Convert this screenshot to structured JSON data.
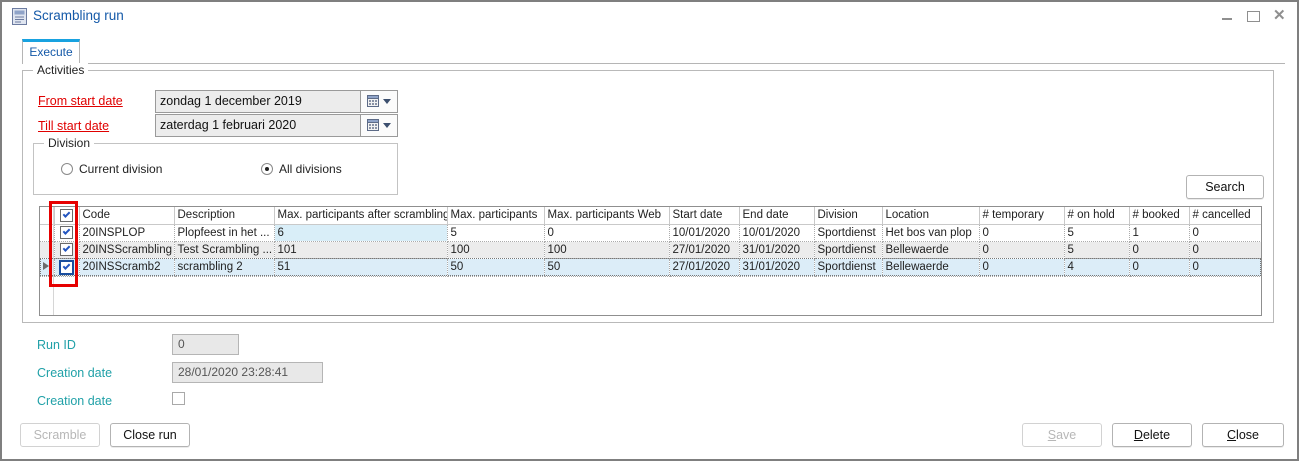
{
  "window": {
    "title": "Scrambling run",
    "icons": {
      "window_icon": "form-document",
      "minimize": "–",
      "maximize": "□",
      "close": "×",
      "calendar_icon": "calendar-grid",
      "dropdown_caret": "▾",
      "current_row_arrow": "▶",
      "checkbox_tick": "✓"
    }
  },
  "tabs": [
    {
      "label": "Execute"
    }
  ],
  "activities": {
    "group_label": "Activities",
    "date_fields": [
      {
        "label": "From start date",
        "value": "zondag 1 december 2019"
      },
      {
        "label": "Till start date",
        "value": "zaterdag 1 februari 2020"
      }
    ],
    "division": {
      "group_label": "Division",
      "options": [
        {
          "label": "Current division",
          "selected": false
        },
        {
          "label": "All divisions",
          "selected": true
        }
      ]
    },
    "search_label": "Search"
  },
  "table": {
    "columns": [
      "Code",
      "Description",
      "Max. participants after scrambling",
      "Max. participants",
      "Max. participants Web",
      "Start date",
      "End date",
      "Division",
      "Location",
      "# temporary",
      "# on hold",
      "# booked",
      "# cancelled"
    ],
    "select_all_checked": true,
    "rows": [
      {
        "checked": true,
        "current": false,
        "cells": [
          "20INSPLOP",
          "Plopfeest in het ...",
          "6",
          "5",
          "0",
          "10/01/2020",
          "10/01/2020",
          "Sportdienst",
          "Het bos van plop",
          "0",
          "5",
          "1",
          "0"
        ]
      },
      {
        "checked": true,
        "current": false,
        "cells": [
          "20INSScrambling",
          "Test Scrambling ...",
          "101",
          "100",
          "100",
          "27/01/2020",
          "31/01/2020",
          "Sportdienst",
          "Bellewaerde",
          "0",
          "5",
          "0",
          "0"
        ]
      },
      {
        "checked": true,
        "current": true,
        "cells": [
          "20INSScramb2",
          "scrambling 2",
          "51",
          "50",
          "50",
          "27/01/2020",
          "31/01/2020",
          "Sportdienst",
          "Bellewaerde",
          "0",
          "4",
          "0",
          "0"
        ]
      }
    ]
  },
  "details": {
    "run_id": {
      "label": "Run ID",
      "value": "0"
    },
    "creation_date": {
      "label": "Creation date",
      "value": "28/01/2020 23:28:41"
    },
    "creation_date_check": {
      "label": "Creation date",
      "checked": false
    }
  },
  "footer": {
    "left": [
      {
        "label": "Scramble",
        "enabled": false
      },
      {
        "label": "Close run",
        "enabled": true
      }
    ],
    "right": [
      {
        "label": "Save",
        "enabled": false
      },
      {
        "label": "Delete",
        "enabled": true
      },
      {
        "label": "Close",
        "enabled": true
      }
    ]
  },
  "colors": {
    "title_blue": "#1459a8",
    "tab_accent_blue": "#18a2e0",
    "required_red": "#e00000",
    "teal_label": "#21a1a8",
    "annotation_red": "#e60000",
    "selected_row_blue": "#dcedf8",
    "highlight_cell_blue": "#d9eef8",
    "alt_row_gray": "#ececec",
    "checkbox_check_blue": "#2456c0"
  }
}
